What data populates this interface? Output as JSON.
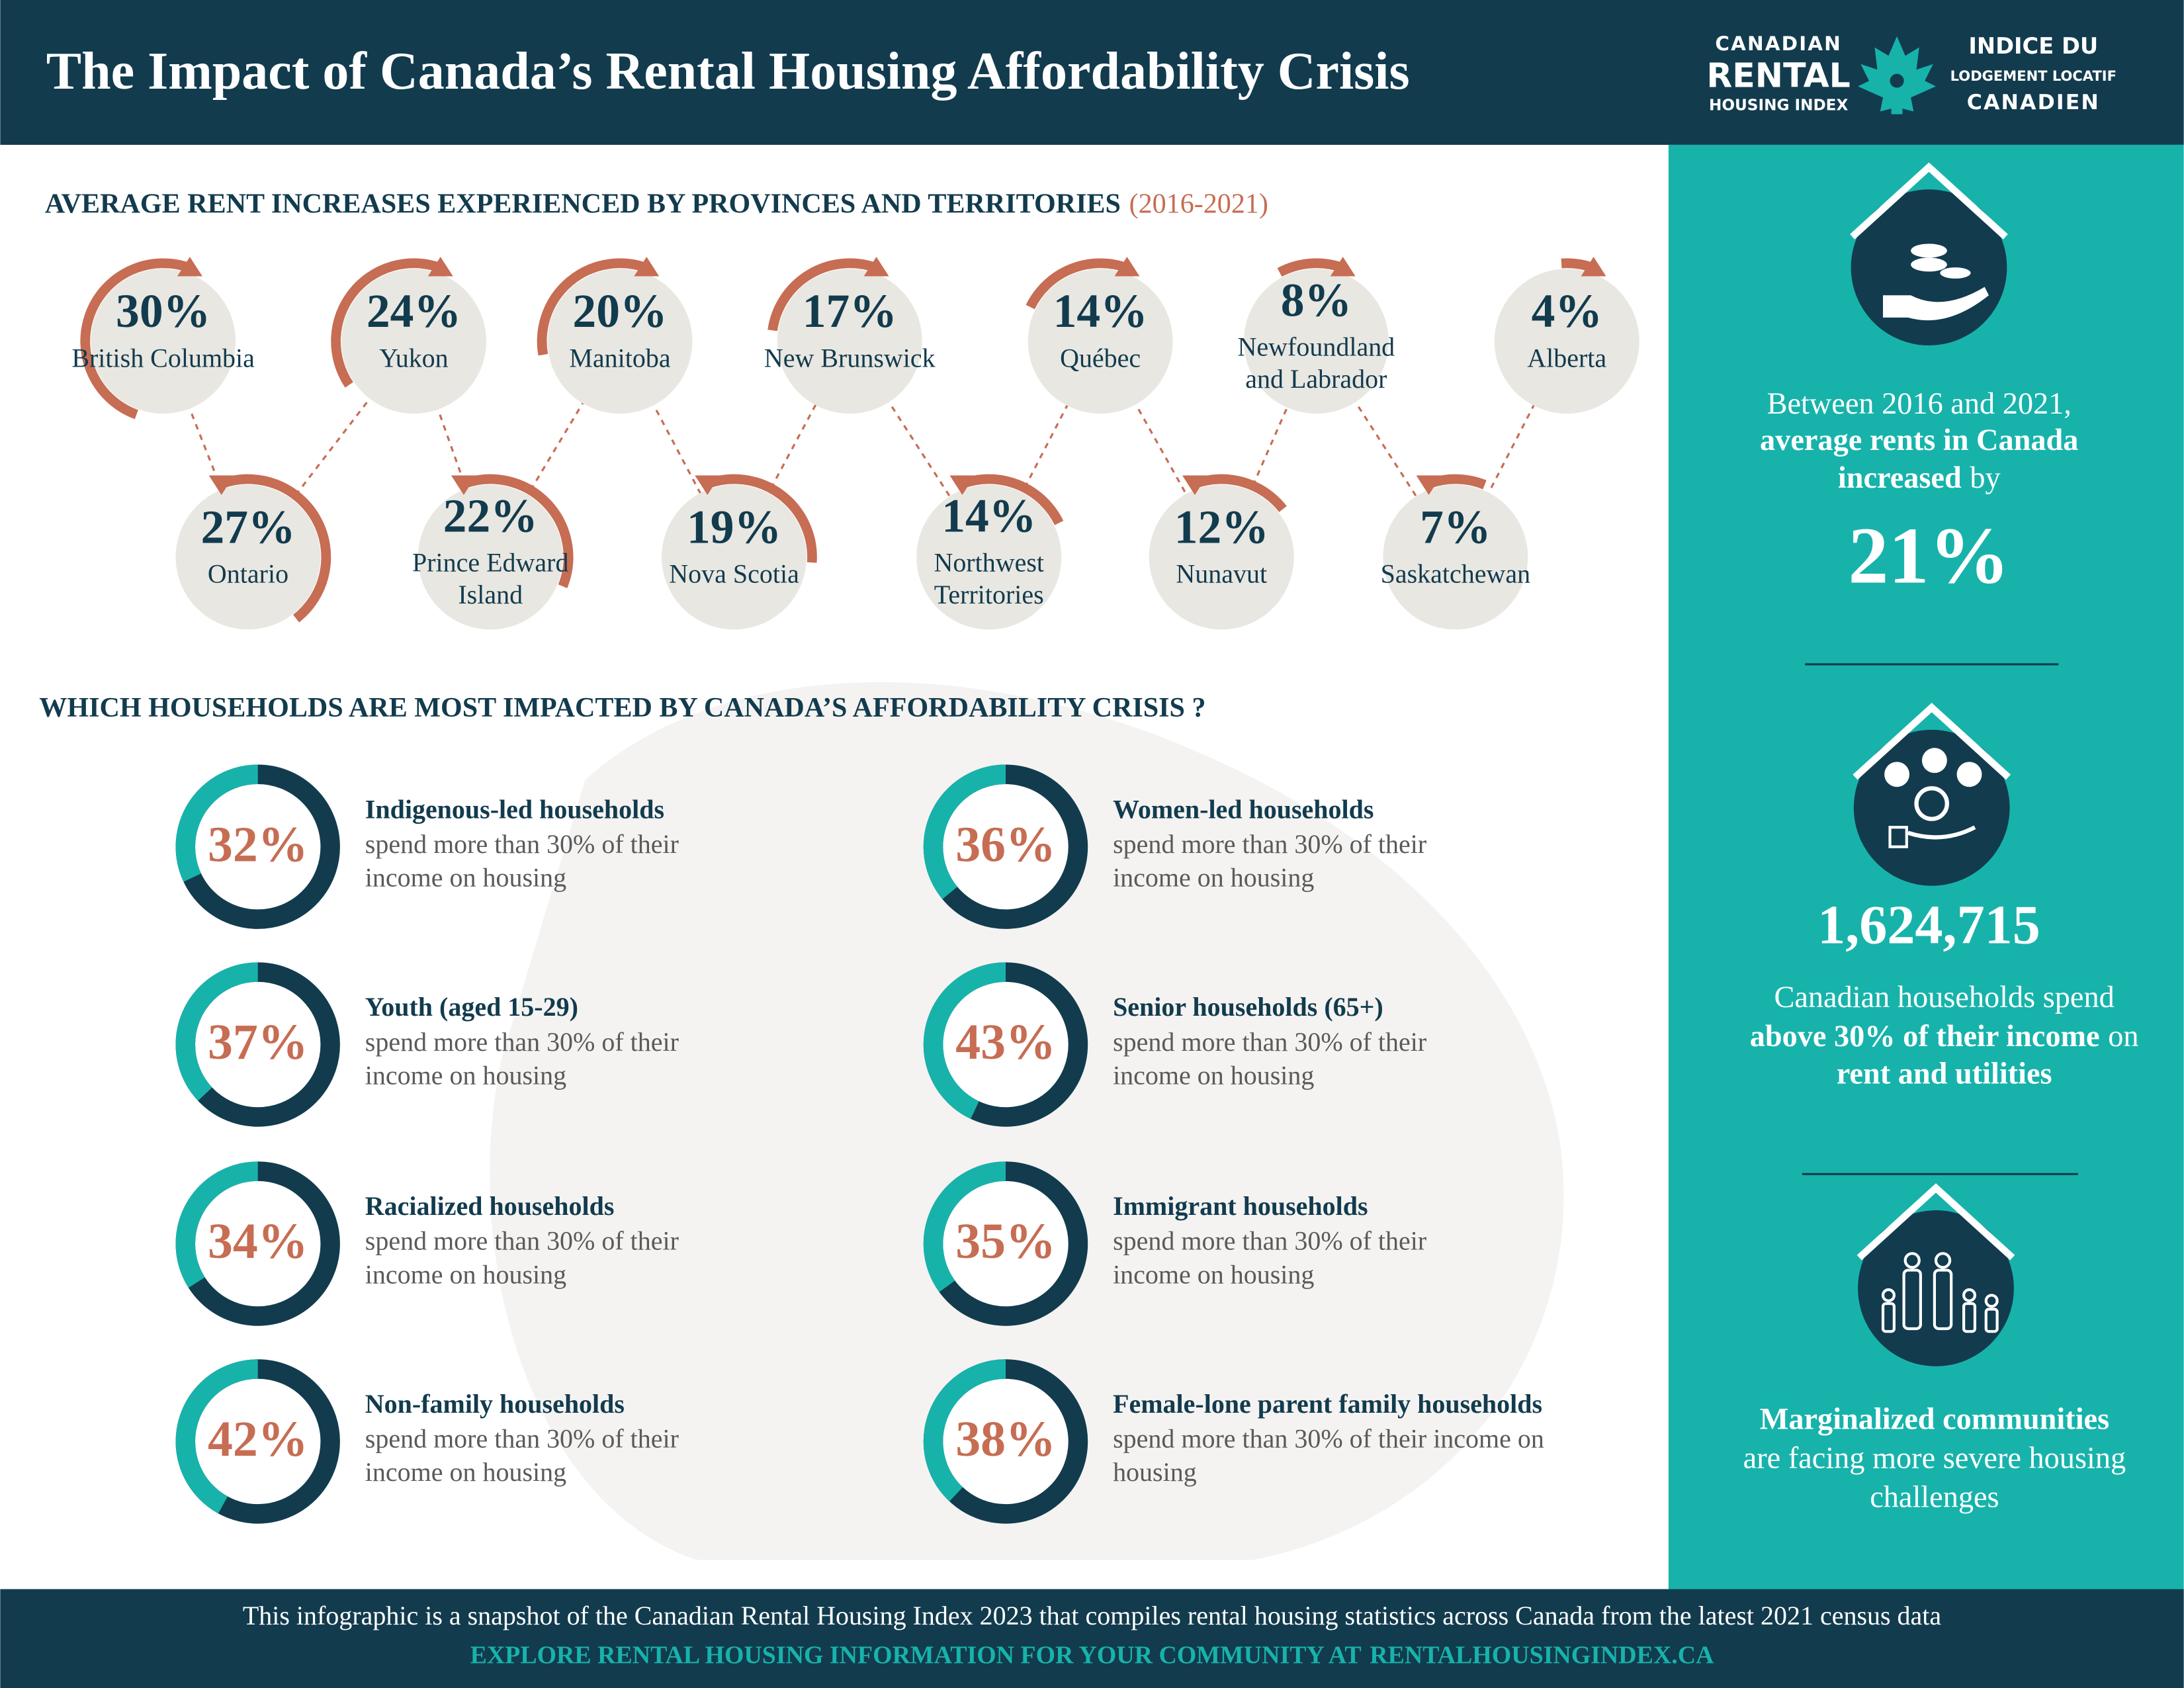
{
  "header": {
    "title": "The Impact of Canada’s Rental Housing Affordability Crisis",
    "logo": {
      "en_lines": [
        "CANADIAN",
        "RENTAL",
        "HOUSING INDEX"
      ],
      "fr_lines": [
        "INDICE DU",
        "LODGEMENT LOCATIF",
        "CANADIEN"
      ]
    }
  },
  "rent_increases": {
    "heading": "AVERAGE RENT INCREASES EXPERIENCED BY PROVINCES AND TERRITORIES",
    "period": "(2016-2021)",
    "regions": [
      {
        "name_lines": [
          "British Columbia"
        ],
        "value": 30,
        "label": "30%"
      },
      {
        "name_lines": [
          "Ontario"
        ],
        "value": 27,
        "label": "27%"
      },
      {
        "name_lines": [
          "Yukon"
        ],
        "value": 24,
        "label": "24%"
      },
      {
        "name_lines": [
          "Prince Edward",
          "Island"
        ],
        "value": 22,
        "label": "22%"
      },
      {
        "name_lines": [
          "Manitoba"
        ],
        "value": 20,
        "label": "20%"
      },
      {
        "name_lines": [
          "Nova Scotia"
        ],
        "value": 19,
        "label": "19%"
      },
      {
        "name_lines": [
          "New Brunswick"
        ],
        "value": 17,
        "label": "17%"
      },
      {
        "name_lines": [
          "Northwest",
          "Territories"
        ],
        "value": 14,
        "label": "14%"
      },
      {
        "name_lines": [
          "Québec"
        ],
        "value": 14,
        "label": "14%"
      },
      {
        "name_lines": [
          "Nunavut"
        ],
        "value": 12,
        "label": "12%"
      },
      {
        "name_lines": [
          "Newfoundland",
          "and Labrador"
        ],
        "value": 8,
        "label": "8%"
      },
      {
        "name_lines": [
          "Saskatchewan"
        ],
        "value": 7,
        "label": "7%"
      },
      {
        "name_lines": [
          "Alberta"
        ],
        "value": 4,
        "label": "4%"
      }
    ]
  },
  "households": {
    "heading": "WHICH HOUSEHOLDS ARE MOST IMPACTED BY CANADA’S AFFORDABILITY CRISIS ?",
    "groups": [
      {
        "title": "Indigenous-led households",
        "description_lines": [
          "spend more than 30% of their",
          "income on housing"
        ],
        "value": 32,
        "label": "32%"
      },
      {
        "title": "Women-led households",
        "description_lines": [
          "spend more than 30% of their",
          "income on housing"
        ],
        "value": 36,
        "label": "36%"
      },
      {
        "title": "Youth (aged 15-29)",
        "description_lines": [
          "spend more than 30% of their",
          "income on housing"
        ],
        "value": 37,
        "label": "37%"
      },
      {
        "title": "Senior households (65+)",
        "description_lines": [
          "spend more than 30% of their",
          "income on housing"
        ],
        "value": 43,
        "label": "43%"
      },
      {
        "title": "Racialized households",
        "description_lines": [
          "spend more than 30% of their",
          "income on housing"
        ],
        "value": 34,
        "label": "34%"
      },
      {
        "title": "Immigrant households",
        "description_lines": [
          "spend more than 30% of their",
          "income on housing"
        ],
        "value": 35,
        "label": "35%"
      },
      {
        "title": "Non-family households",
        "description_lines": [
          "spend more than 30% of their",
          "income on housing"
        ],
        "value": 42,
        "label": "42%"
      },
      {
        "title": "Female-lone parent  family households",
        "description_lines": [
          "spend more than 30% of their income on",
          "housing"
        ],
        "value": 38,
        "label": "38%"
      }
    ]
  },
  "sidebar": {
    "rents": {
      "line1": "Between 2016 and 2021,",
      "line2_bold": "average rents in Canada",
      "line3_bold": "increased",
      "line3_rest": "by",
      "figure": "21%"
    },
    "households": {
      "figure": "1,624,715",
      "line1": "Canadian households spend",
      "line2_bold": "above 30% of their income",
      "line2_rest": "on",
      "line3_bold": "rent and utilities"
    },
    "marginalized": {
      "line1_bold": "Marginalized communities",
      "line2": "are facing more severe housing",
      "line3": "challenges"
    }
  },
  "footer": {
    "note": "This infographic is a snapshot of the Canadian Rental Housing Index 2023 that compiles rental housing statistics across Canada from the latest 2021 census data",
    "cta": "EXPLORE RENTAL HOUSING INFORMATION FOR YOUR COMMUNITY AT",
    "link": "RENTALHOUSINGINDEX.CA"
  }
}
